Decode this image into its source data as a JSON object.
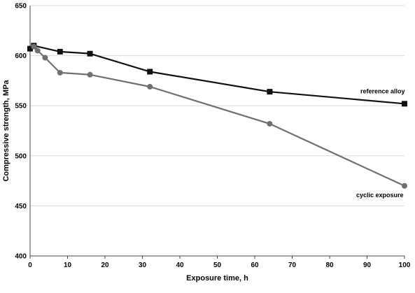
{
  "chart_data": {
    "type": "line",
    "title": "",
    "xlabel": "Exposure time, h",
    "ylabel": "Compressive strength, MPa",
    "xlim": [
      0,
      100
    ],
    "ylim": [
      400,
      650
    ],
    "xticks": [
      0,
      10,
      20,
      30,
      40,
      50,
      60,
      70,
      80,
      90,
      100
    ],
    "yticks": [
      400,
      450,
      500,
      550,
      600,
      650
    ],
    "grid": "horizontal",
    "legend": "none",
    "series": [
      {
        "name": "reference alloy",
        "marker": "square",
        "color": "#111111",
        "x": [
          0,
          1,
          8,
          16,
          32,
          64,
          100
        ],
        "y": [
          607,
          610,
          604,
          602,
          584,
          564,
          552
        ],
        "err_low": [
          607,
          610,
          604,
          602,
          584,
          564,
          552
        ],
        "err_high": [
          607,
          610,
          604,
          602,
          584,
          564,
          552
        ]
      },
      {
        "name": "cyclic exposure",
        "marker": "circle",
        "color": "#707070",
        "x": [
          1,
          2,
          4,
          8,
          16,
          32,
          64,
          100
        ],
        "y": [
          609,
          605,
          598,
          583,
          581,
          569,
          532,
          470
        ],
        "err_low": [
          609,
          605,
          598,
          583,
          581,
          569,
          532,
          470
        ],
        "err_high": [
          609,
          605,
          598,
          583,
          581,
          569,
          532,
          470
        ]
      }
    ]
  }
}
